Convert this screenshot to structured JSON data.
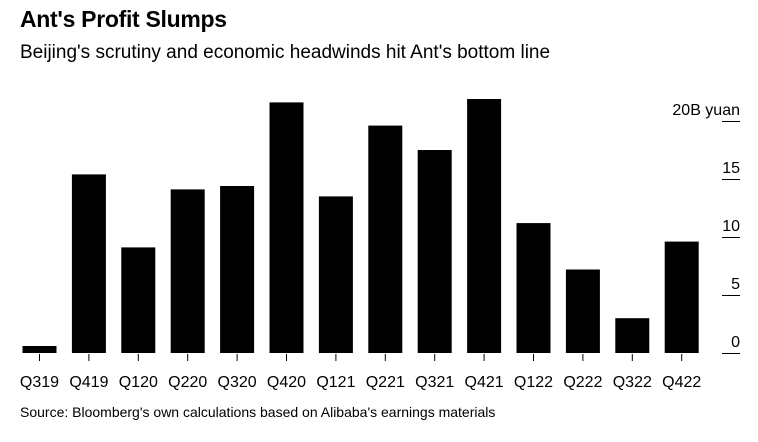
{
  "title": "Ant's Profit Slumps",
  "subtitle": "Beijing's scrutiny and economic headwinds hit Ant's bottom line",
  "source": "Source: Bloomberg's own calculations based on Alibaba's earnings materials",
  "chart_data": {
    "type": "bar",
    "title": "Ant's Profit Slumps",
    "subtitle": "Beijing's scrutiny and economic headwinds hit Ant's bottom line",
    "xlabel": "",
    "ylabel": "",
    "y_unit_label": "20B yuan",
    "ylim": [
      0,
      20
    ],
    "yticks": [
      0,
      5,
      10,
      15,
      20
    ],
    "ytick_labels": [
      "0",
      "5",
      "10",
      "15",
      "20B yuan"
    ],
    "categories": [
      "Q319",
      "Q419",
      "Q120",
      "Q220",
      "Q320",
      "Q420",
      "Q121",
      "Q221",
      "Q321",
      "Q421",
      "Q122",
      "Q222",
      "Q322",
      "Q422"
    ],
    "values": [
      0.6,
      15.4,
      9.1,
      14.1,
      14.4,
      21.6,
      13.5,
      19.6,
      17.5,
      21.9,
      11.2,
      7.2,
      3.0,
      9.6
    ],
    "bar_color": "#000000",
    "grid": false,
    "axis_position": "right"
  }
}
